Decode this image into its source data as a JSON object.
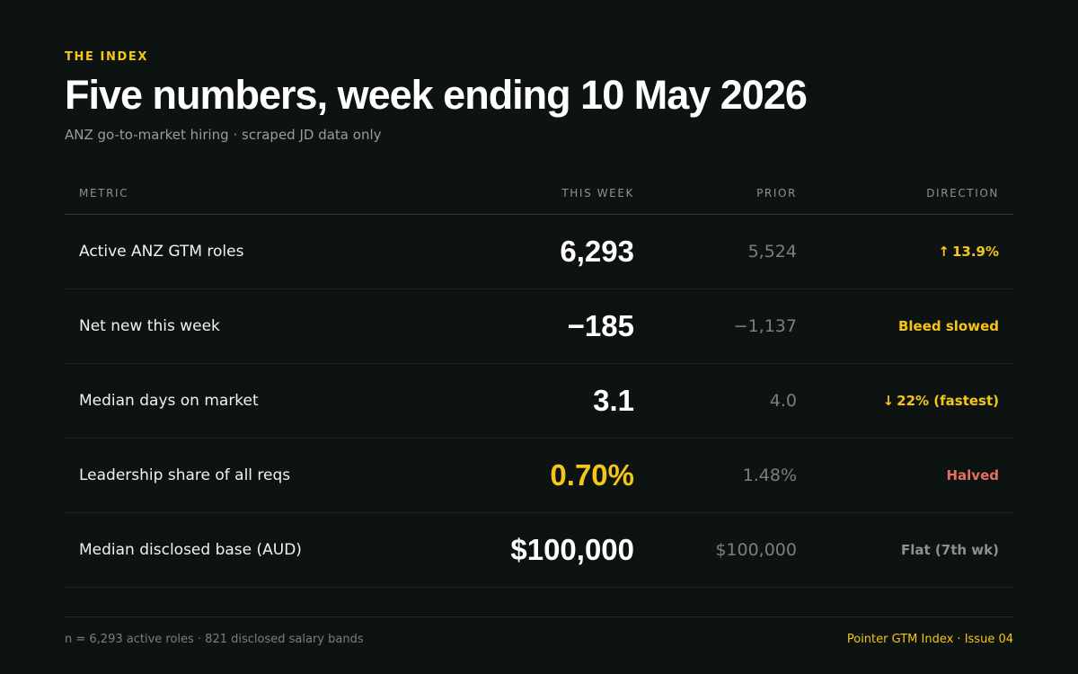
{
  "header": {
    "eyebrow": "THE INDEX",
    "title": "Five numbers, week ending 10 May 2026",
    "subtitle": "ANZ go-to-market hiring · scraped JD data only"
  },
  "table": {
    "columns": {
      "metric": "METRIC",
      "this_week": "THIS WEEK",
      "prior": "PRIOR",
      "direction": "DIRECTION"
    },
    "rows": [
      {
        "metric": "Active ANZ GTM roles",
        "this_week": "6,293",
        "prior": "5,524",
        "direction": "13.9%",
        "direction_icon": "arrow-up-icon",
        "arrow": "↑"
      },
      {
        "metric": "Net new this week",
        "this_week": "−185",
        "prior": "−1,137",
        "direction": "Bleed slowed"
      },
      {
        "metric": "Median days on market",
        "this_week": "3.1",
        "prior": "4.0",
        "direction": "22% (fastest)",
        "direction_icon": "arrow-down-icon",
        "arrow": "↓"
      },
      {
        "metric": "Leadership share of all reqs",
        "this_week": "0.70%",
        "prior": "1.48%",
        "direction": "Halved"
      },
      {
        "metric": "Median disclosed base (AUD)",
        "this_week": "$100,000",
        "prior": "$100,000",
        "direction": "Flat (7th wk)"
      }
    ]
  },
  "footer": {
    "left": "n = 6,293 active roles · 821 disclosed salary bands",
    "right": "Pointer GTM Index · Issue 04"
  },
  "colors": {
    "background": "#0d1310",
    "accent": "#f5c518",
    "negative": "#e5705f",
    "muted": "#8e918c"
  }
}
